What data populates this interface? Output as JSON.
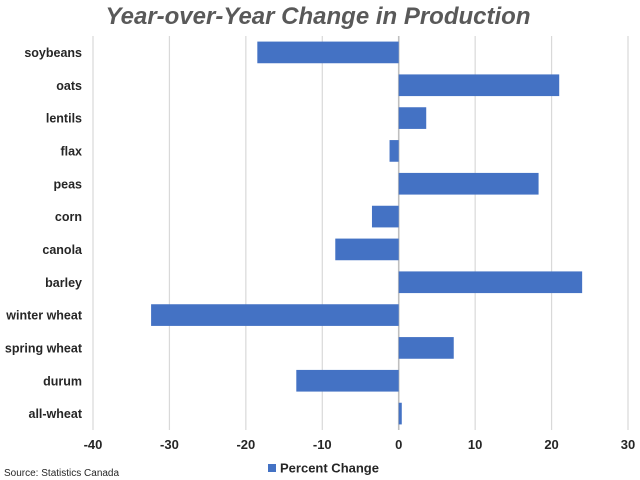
{
  "chart_data": {
    "type": "bar",
    "orientation": "horizontal",
    "title": "Year-over-Year Change in Production",
    "categories": [
      "soybeans",
      "oats",
      "lentils",
      "flax",
      "peas",
      "corn",
      "canola",
      "barley",
      "winter wheat",
      "spring wheat",
      "durum",
      "all-wheat"
    ],
    "series": [
      {
        "name": "Percent Change",
        "color": "#4472c4",
        "values": [
          -18.5,
          21.0,
          3.6,
          -1.2,
          18.3,
          -3.5,
          -8.3,
          24.0,
          -32.4,
          7.2,
          -13.4,
          0.4
        ]
      }
    ],
    "xlim": [
      -40,
      30
    ],
    "xticks": [
      "-40",
      "-30",
      "-20",
      "-10",
      "0",
      "10",
      "20",
      "30"
    ],
    "grid": "vertical",
    "legend": "bottom"
  },
  "source": "Source: Statistics Canada"
}
